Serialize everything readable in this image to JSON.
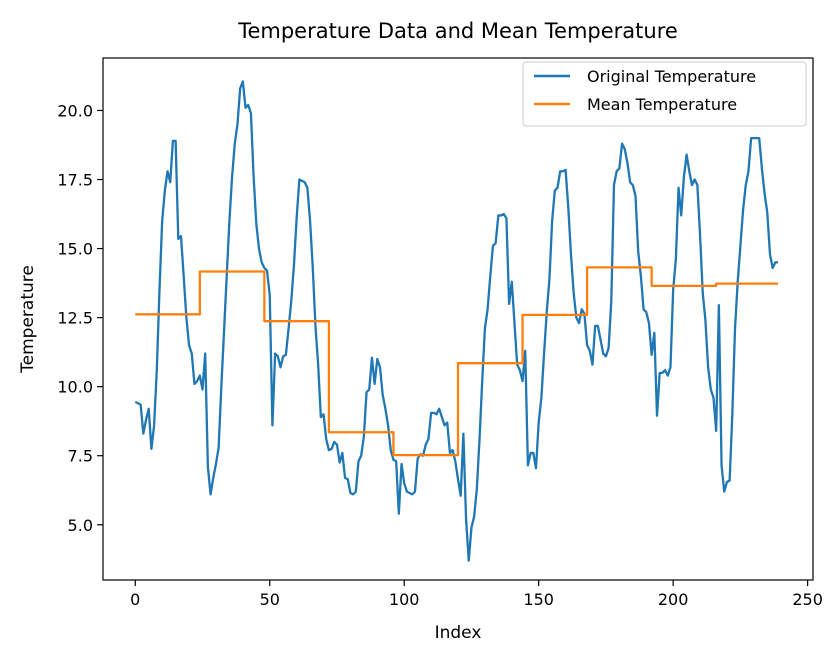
{
  "chart_data": {
    "type": "line",
    "title": "Temperature Data and Mean Temperature",
    "xlabel": "Index",
    "ylabel": "Temperature",
    "xlim": [
      -12,
      252
    ],
    "ylim": [
      3,
      21.9
    ],
    "xticks": [
      0,
      50,
      100,
      150,
      200,
      250
    ],
    "xtick_labels": [
      "0",
      "50",
      "100",
      "150",
      "200",
      "250"
    ],
    "yticks": [
      5.0,
      7.5,
      10.0,
      12.5,
      15.0,
      17.5,
      20.0
    ],
    "ytick_labels": [
      "5.0",
      "7.5",
      "10.0",
      "12.5",
      "15.0",
      "17.5",
      "20.0"
    ],
    "grid": false,
    "legend_position": "top-right",
    "series": [
      {
        "name": "Original Temperature",
        "color": "#1f77b4",
        "style": "line",
        "points": [
          [
            0,
            9.45
          ],
          [
            1,
            9.4
          ],
          [
            2,
            9.35
          ],
          [
            3,
            8.3
          ],
          [
            4,
            8.8
          ],
          [
            5,
            9.2
          ],
          [
            6,
            7.75
          ],
          [
            7,
            8.6
          ],
          [
            8,
            10.6
          ],
          [
            9,
            13.5
          ],
          [
            10,
            16.0
          ],
          [
            11,
            17.1
          ],
          [
            12,
            17.8
          ],
          [
            13,
            17.4
          ],
          [
            14,
            18.9
          ],
          [
            15,
            18.9
          ],
          [
            16,
            15.35
          ],
          [
            17,
            15.45
          ],
          [
            18,
            14.0
          ],
          [
            19,
            12.5
          ],
          [
            20,
            11.5
          ],
          [
            21,
            11.2
          ],
          [
            22,
            10.1
          ],
          [
            23,
            10.2
          ],
          [
            24,
            10.4
          ],
          [
            25,
            9.9
          ],
          [
            26,
            11.2
          ],
          [
            27,
            7.1
          ],
          [
            28,
            6.1
          ],
          [
            29,
            6.7
          ],
          [
            30,
            7.2
          ],
          [
            31,
            7.8
          ],
          [
            32,
            10.0
          ],
          [
            33,
            12.0
          ],
          [
            34,
            14.0
          ],
          [
            35,
            16.0
          ],
          [
            36,
            17.6
          ],
          [
            37,
            18.8
          ],
          [
            38,
            19.5
          ],
          [
            39,
            20.8
          ],
          [
            40,
            21.05
          ],
          [
            41,
            20.1
          ],
          [
            42,
            20.2
          ],
          [
            43,
            19.9
          ],
          [
            44,
            17.6
          ],
          [
            45,
            15.9
          ],
          [
            46,
            15.0
          ],
          [
            47,
            14.5
          ],
          [
            48,
            14.3
          ],
          [
            49,
            14.2
          ],
          [
            50,
            13.3
          ],
          [
            51,
            8.6
          ],
          [
            52,
            11.2
          ],
          [
            53,
            11.1
          ],
          [
            54,
            10.7
          ],
          [
            55,
            11.1
          ],
          [
            56,
            11.15
          ],
          [
            57,
            12.1
          ],
          [
            58,
            13.1
          ],
          [
            59,
            14.4
          ],
          [
            60,
            16.1
          ],
          [
            61,
            17.5
          ],
          [
            62,
            17.45
          ],
          [
            63,
            17.4
          ],
          [
            64,
            17.2
          ],
          [
            65,
            16.0
          ],
          [
            66,
            14.3
          ],
          [
            67,
            12.2
          ],
          [
            68,
            10.8
          ],
          [
            69,
            8.9
          ],
          [
            70,
            9.0
          ],
          [
            71,
            8.1
          ],
          [
            72,
            7.7
          ],
          [
            73,
            7.75
          ],
          [
            74,
            8.0
          ],
          [
            75,
            7.9
          ],
          [
            76,
            7.25
          ],
          [
            77,
            7.6
          ],
          [
            78,
            6.7
          ],
          [
            79,
            6.65
          ],
          [
            80,
            6.15
          ],
          [
            81,
            6.1
          ],
          [
            82,
            6.2
          ],
          [
            83,
            7.3
          ],
          [
            84,
            7.5
          ],
          [
            85,
            8.2
          ],
          [
            86,
            9.8
          ],
          [
            87,
            9.9
          ],
          [
            88,
            11.05
          ],
          [
            89,
            10.1
          ],
          [
            90,
            11.0
          ],
          [
            91,
            10.7
          ],
          [
            92,
            9.7
          ],
          [
            93,
            9.2
          ],
          [
            94,
            8.6
          ],
          [
            95,
            7.7
          ],
          [
            96,
            7.35
          ],
          [
            97,
            7.3
          ],
          [
            98,
            5.4
          ],
          [
            99,
            7.2
          ],
          [
            100,
            6.5
          ],
          [
            101,
            6.2
          ],
          [
            102,
            6.15
          ],
          [
            103,
            6.1
          ],
          [
            104,
            6.2
          ],
          [
            105,
            7.4
          ],
          [
            106,
            7.55
          ],
          [
            107,
            7.5
          ],
          [
            108,
            7.9
          ],
          [
            109,
            8.1
          ],
          [
            110,
            9.05
          ],
          [
            111,
            9.05
          ],
          [
            112,
            9.0
          ],
          [
            113,
            9.2
          ],
          [
            114,
            8.9
          ],
          [
            115,
            8.6
          ],
          [
            116,
            8.7
          ],
          [
            117,
            7.6
          ],
          [
            118,
            7.7
          ],
          [
            119,
            7.3
          ],
          [
            120,
            6.65
          ],
          [
            121,
            6.05
          ],
          [
            122,
            8.3
          ],
          [
            123,
            5.2
          ],
          [
            124,
            3.7
          ],
          [
            125,
            4.9
          ],
          [
            126,
            5.3
          ],
          [
            127,
            6.3
          ],
          [
            128,
            8.1
          ],
          [
            129,
            10.2
          ],
          [
            130,
            12.1
          ],
          [
            131,
            12.8
          ],
          [
            132,
            14.0
          ],
          [
            133,
            15.1
          ],
          [
            134,
            15.2
          ],
          [
            135,
            16.2
          ],
          [
            136,
            16.2
          ],
          [
            137,
            16.25
          ],
          [
            138,
            16.1
          ],
          [
            139,
            13.0
          ],
          [
            140,
            13.8
          ],
          [
            141,
            12.3
          ],
          [
            142,
            10.8
          ],
          [
            143,
            10.6
          ],
          [
            144,
            10.2
          ],
          [
            145,
            11.3
          ],
          [
            146,
            7.15
          ],
          [
            147,
            7.6
          ],
          [
            148,
            7.6
          ],
          [
            149,
            7.05
          ],
          [
            150,
            8.7
          ],
          [
            151,
            9.6
          ],
          [
            152,
            11.2
          ],
          [
            153,
            12.7
          ],
          [
            154,
            13.9
          ],
          [
            155,
            16.0
          ],
          [
            156,
            17.1
          ],
          [
            157,
            17.2
          ],
          [
            158,
            17.8
          ],
          [
            159,
            17.8
          ],
          [
            160,
            17.85
          ],
          [
            161,
            16.5
          ],
          [
            162,
            14.8
          ],
          [
            163,
            13.4
          ],
          [
            164,
            12.5
          ],
          [
            165,
            12.3
          ],
          [
            166,
            12.8
          ],
          [
            167,
            12.65
          ],
          [
            168,
            11.5
          ],
          [
            169,
            11.3
          ],
          [
            170,
            10.8
          ],
          [
            171,
            12.2
          ],
          [
            172,
            12.2
          ],
          [
            173,
            11.7
          ],
          [
            174,
            11.2
          ],
          [
            175,
            11.1
          ],
          [
            176,
            11.4
          ],
          [
            177,
            13.1
          ],
          [
            178,
            17.3
          ],
          [
            179,
            17.8
          ],
          [
            180,
            17.9
          ],
          [
            181,
            18.8
          ],
          [
            182,
            18.6
          ],
          [
            183,
            18.1
          ],
          [
            184,
            17.4
          ],
          [
            185,
            17.3
          ],
          [
            186,
            16.9
          ],
          [
            187,
            14.9
          ],
          [
            188,
            14.0
          ],
          [
            189,
            12.8
          ],
          [
            190,
            12.7
          ],
          [
            191,
            12.3
          ],
          [
            192,
            11.15
          ],
          [
            193,
            11.95
          ],
          [
            194,
            8.95
          ],
          [
            195,
            10.5
          ],
          [
            196,
            10.5
          ],
          [
            197,
            10.6
          ],
          [
            198,
            10.4
          ],
          [
            199,
            10.7
          ],
          [
            200,
            13.5
          ],
          [
            201,
            14.6
          ],
          [
            202,
            17.2
          ],
          [
            203,
            16.2
          ],
          [
            204,
            17.6
          ],
          [
            205,
            18.4
          ],
          [
            206,
            17.8
          ],
          [
            207,
            17.3
          ],
          [
            208,
            17.5
          ],
          [
            209,
            17.3
          ],
          [
            210,
            15.5
          ],
          [
            211,
            13.4
          ],
          [
            212,
            12.4
          ],
          [
            213,
            10.7
          ],
          [
            214,
            9.9
          ],
          [
            215,
            9.6
          ],
          [
            216,
            8.4
          ],
          [
            217,
            12.95
          ],
          [
            218,
            7.15
          ],
          [
            219,
            6.2
          ],
          [
            220,
            6.55
          ],
          [
            221,
            6.6
          ],
          [
            222,
            9.0
          ],
          [
            223,
            12.1
          ],
          [
            224,
            13.8
          ],
          [
            225,
            15.1
          ],
          [
            226,
            16.4
          ],
          [
            227,
            17.3
          ],
          [
            228,
            17.8
          ],
          [
            229,
            19.0
          ],
          [
            230,
            19.0
          ],
          [
            231,
            19.0
          ],
          [
            232,
            19.0
          ],
          [
            233,
            17.9
          ],
          [
            234,
            17.0
          ],
          [
            235,
            16.3
          ],
          [
            236,
            14.8
          ],
          [
            237,
            14.3
          ],
          [
            238,
            14.5
          ],
          [
            239,
            14.5
          ]
        ]
      },
      {
        "name": "Mean Temperature",
        "color": "#ff7f0e",
        "style": "step",
        "points": [
          [
            0,
            12.62
          ],
          [
            24,
            12.62
          ],
          [
            24,
            14.17
          ],
          [
            48,
            14.17
          ],
          [
            48,
            12.37
          ],
          [
            72,
            12.37
          ],
          [
            72,
            8.35
          ],
          [
            96,
            8.35
          ],
          [
            96,
            7.52
          ],
          [
            120,
            7.52
          ],
          [
            120,
            10.85
          ],
          [
            144,
            10.85
          ],
          [
            144,
            12.6
          ],
          [
            168,
            12.6
          ],
          [
            168,
            14.32
          ],
          [
            192,
            14.32
          ],
          [
            192,
            13.65
          ],
          [
            216,
            13.65
          ],
          [
            216,
            13.73
          ],
          [
            239,
            13.73
          ]
        ]
      }
    ]
  }
}
